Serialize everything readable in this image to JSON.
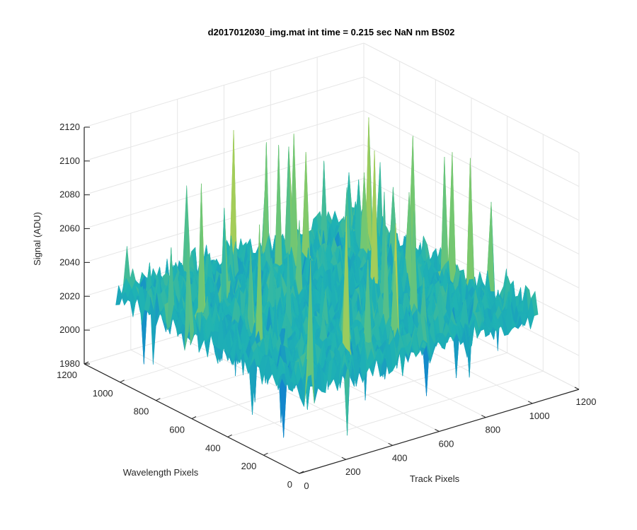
{
  "chart_data": {
    "type": "surface",
    "title": "d2017012030_img.mat int time = 0.215 sec  NaN nm BS02",
    "xlabel": "Track Pixels",
    "ylabel": "Wavelength Pixels",
    "zlabel": "Signal (ADU)",
    "xlim": [
      0,
      1200
    ],
    "ylim": [
      0,
      1200
    ],
    "zlim": [
      1980,
      2120
    ],
    "xticks": [
      "0",
      "200",
      "400",
      "600",
      "800",
      "1000",
      "1200"
    ],
    "yticks": [
      "0",
      "200",
      "400",
      "600",
      "800",
      "1000",
      "1200"
    ],
    "zticks": [
      "1980",
      "2000",
      "2020",
      "2040",
      "2060",
      "2080",
      "2100",
      "2120"
    ],
    "surface": {
      "x_extent": [
        0,
        1024
      ],
      "y_extent": [
        0,
        1024
      ],
      "z_mean": 2032,
      "z_noise_std": 12,
      "z_peak_max": 2115,
      "z_dip_min": 1983,
      "colormap": "parula"
    },
    "grid": true,
    "box": "on"
  },
  "colors": {
    "background": "#ffffff",
    "axis": "#262626",
    "grid": "#e6e6e6",
    "surface_low": "#0f77d6",
    "surface_mid": "#1fb3b3",
    "surface_high": "#e6d43a"
  }
}
